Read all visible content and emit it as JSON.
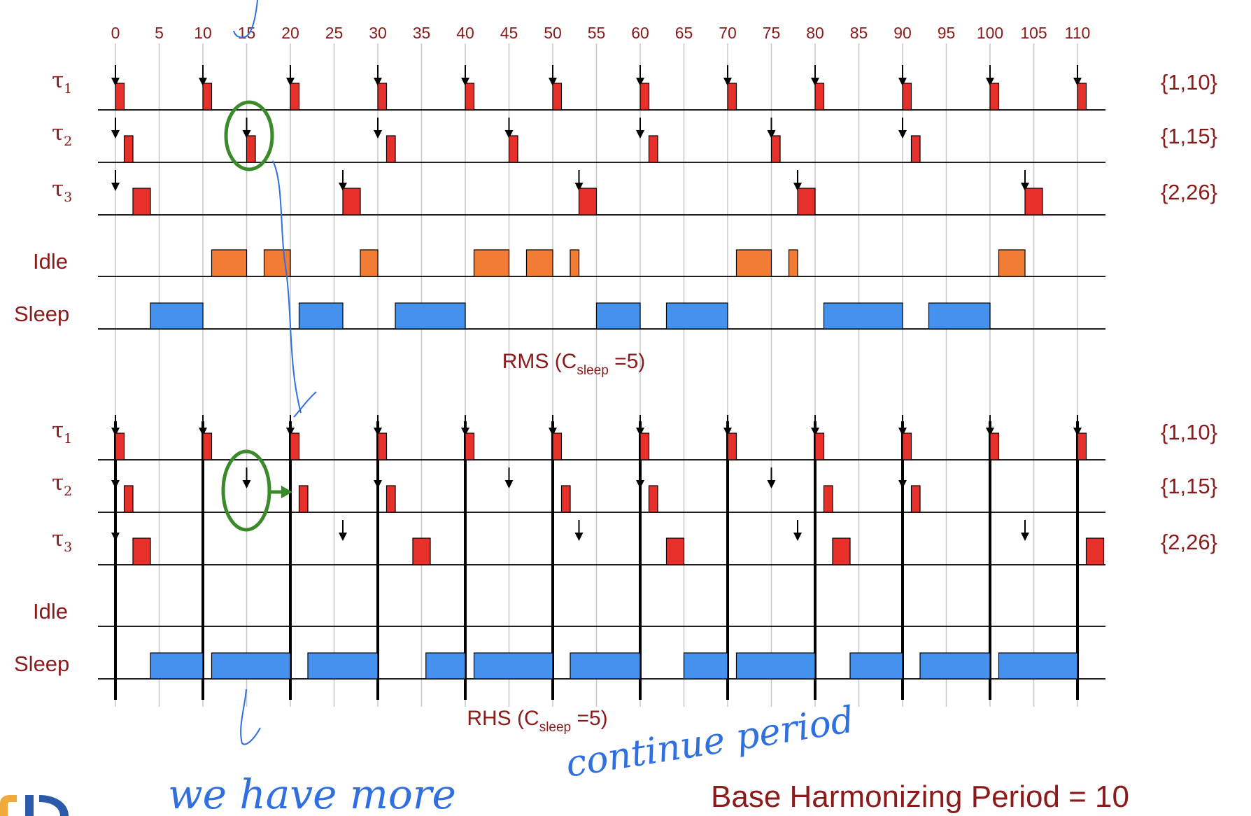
{
  "time_axis": {
    "ticks": [
      0,
      5,
      10,
      15,
      20,
      25,
      30,
      35,
      40,
      45,
      50,
      55,
      60,
      65,
      70,
      75,
      80,
      85,
      90,
      95,
      100,
      105,
      110
    ]
  },
  "task_params": {
    "tau1": "{1,10}",
    "tau2": "{1,15}",
    "tau3": "{2,26}"
  },
  "row_labels": {
    "tau": "τ",
    "tau1_sub": "1",
    "tau2_sub": "2",
    "tau3_sub": "3",
    "idle": "Idle",
    "sleep": "Sleep"
  },
  "colors": {
    "job": "#e8302a",
    "idle": "#f07c36",
    "sleep": "#4592ee",
    "text": "#8b1a1a",
    "grid": "#c8c8c8",
    "ink": "#2f6fe0",
    "highlight": "#3a8a2a"
  },
  "schedules": [
    {
      "id": "rms",
      "caption_main": "RMS (C",
      "caption_sub": "sleep",
      "caption_tail": " =5)",
      "rows": {
        "tau1": {
          "releases": [
            0,
            10,
            20,
            30,
            40,
            50,
            60,
            70,
            80,
            90,
            100,
            110
          ],
          "jobs": [
            [
              0,
              1
            ],
            [
              10,
              11
            ],
            [
              20,
              21
            ],
            [
              30,
              31
            ],
            [
              40,
              41
            ],
            [
              50,
              51
            ],
            [
              60,
              61
            ],
            [
              70,
              71
            ],
            [
              80,
              81
            ],
            [
              90,
              91
            ],
            [
              100,
              101
            ],
            [
              110,
              111
            ]
          ]
        },
        "tau2": {
          "releases": [
            0,
            15,
            30,
            45,
            60,
            75,
            90
          ],
          "jobs": [
            [
              1,
              2
            ],
            [
              15,
              16
            ],
            [
              31,
              32
            ],
            [
              45,
              46
            ],
            [
              61,
              62
            ],
            [
              75,
              76
            ],
            [
              91,
              92
            ]
          ]
        },
        "tau3": {
          "releases": [
            0,
            26,
            53,
            78,
            104
          ],
          "jobs": [
            [
              2,
              4
            ],
            [
              26,
              28
            ],
            [
              53,
              55
            ],
            [
              78,
              80
            ],
            [
              104,
              106
            ]
          ]
        },
        "idle": [
          [
            11,
            15
          ],
          [
            17,
            20
          ],
          [
            28,
            30
          ],
          [
            41,
            45
          ],
          [
            47,
            50
          ],
          [
            52,
            53
          ],
          [
            71,
            75
          ],
          [
            77,
            78
          ],
          [
            101,
            104
          ]
        ],
        "sleep": [
          [
            4,
            10
          ],
          [
            21,
            26
          ],
          [
            32,
            40
          ],
          [
            55,
            60
          ],
          [
            63,
            70
          ],
          [
            81,
            90
          ],
          [
            93,
            100
          ]
        ]
      },
      "harmonizing_marks": []
    },
    {
      "id": "rhs",
      "caption_main": "RHS (C",
      "caption_sub": "sleep",
      "caption_tail": " =5)",
      "rows": {
        "tau1": {
          "releases": [
            0,
            10,
            20,
            30,
            40,
            50,
            60,
            70,
            80,
            90,
            100,
            110
          ],
          "jobs": [
            [
              0,
              1
            ],
            [
              10,
              11
            ],
            [
              20,
              21
            ],
            [
              30,
              31
            ],
            [
              40,
              41
            ],
            [
              50,
              51
            ],
            [
              60,
              61
            ],
            [
              70,
              71
            ],
            [
              80,
              81
            ],
            [
              90,
              91
            ],
            [
              100,
              101
            ],
            [
              110,
              111
            ]
          ]
        },
        "tau2": {
          "releases": [
            0,
            15,
            30,
            45,
            60,
            75,
            90
          ],
          "jobs": [
            [
              1,
              2
            ],
            [
              21,
              22
            ],
            [
              31,
              32
            ],
            [
              51,
              52
            ],
            [
              61,
              62
            ],
            [
              81,
              82
            ],
            [
              91,
              92
            ]
          ]
        },
        "tau3": {
          "releases": [
            0,
            26,
            53,
            78,
            104
          ],
          "jobs": [
            [
              2,
              4
            ],
            [
              34,
              36
            ],
            [
              63,
              65
            ],
            [
              82,
              84
            ],
            [
              111,
              113
            ]
          ]
        },
        "idle": [],
        "sleep": [
          [
            4,
            10
          ],
          [
            11,
            20
          ],
          [
            22,
            30
          ],
          [
            35.5,
            40
          ],
          [
            41,
            50
          ],
          [
            52,
            60
          ],
          [
            65,
            70
          ],
          [
            71,
            80
          ],
          [
            84,
            90
          ],
          [
            92,
            100
          ],
          [
            101,
            110
          ]
        ]
      },
      "harmonizing_marks": [
        0,
        10,
        20,
        30,
        40,
        50,
        60,
        70,
        80,
        90,
        100,
        110
      ]
    }
  ],
  "footer": {
    "text": "Base Harmonizing Period = 10"
  },
  "annotations": {
    "line1": "we have more",
    "line2": "continue period"
  }
}
